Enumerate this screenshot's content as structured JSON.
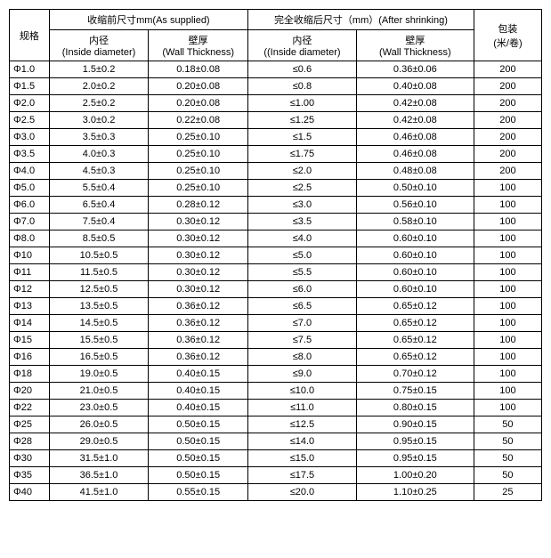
{
  "header": {
    "spec": "规格",
    "supplied_group": "收缩前尺寸mm(As supplied)",
    "shrunk_group": "完全收缩后尺寸（mm）(After shrinking)",
    "id_line1": "内径",
    "id_line2": "(Inside diameter)",
    "wt_line1": "壁厚",
    "wt_line2": "(Wall Thickness)",
    "id2_line1": "内径",
    "id2_line2": "((Inside diameter)",
    "wt2_line1": "壁厚",
    "wt2_line2": "(Wall Thickness)",
    "pack_line1": "包装",
    "pack_line2": "(米/卷)"
  },
  "rows": [
    {
      "spec": "Φ1.0",
      "id": "1.5±0.2",
      "wt": "0.18±0.08",
      "id2": "≤0.6",
      "wt2": "0.36±0.06",
      "pack": "200"
    },
    {
      "spec": "Φ1.5",
      "id": "2.0±0.2",
      "wt": "0.20±0.08",
      "id2": "≤0.8",
      "wt2": "0.40±0.08",
      "pack": "200"
    },
    {
      "spec": "Φ2.0",
      "id": "2.5±0.2",
      "wt": "0.20±0.08",
      "id2": "≤1.00",
      "wt2": "0.42±0.08",
      "pack": "200"
    },
    {
      "spec": "Φ2.5",
      "id": "3.0±0.2",
      "wt": "0.22±0.08",
      "id2": "≤1.25",
      "wt2": "0.42±0.08",
      "pack": "200"
    },
    {
      "spec": "Φ3.0",
      "id": "3.5±0.3",
      "wt": "0.25±0.10",
      "id2": "≤1.5",
      "wt2": "0.46±0.08",
      "pack": "200"
    },
    {
      "spec": "Φ3.5",
      "id": "4.0±0.3",
      "wt": "0.25±0.10",
      "id2": "≤1.75",
      "wt2": "0.46±0.08",
      "pack": "200"
    },
    {
      "spec": "Φ4.0",
      "id": "4.5±0.3",
      "wt": "0.25±0.10",
      "id2": "≤2.0",
      "wt2": "0.48±0.08",
      "pack": "200"
    },
    {
      "spec": "Φ5.0",
      "id": "5.5±0.4",
      "wt": "0.25±0.10",
      "id2": "≤2.5",
      "wt2": "0.50±0.10",
      "pack": "100"
    },
    {
      "spec": "Φ6.0",
      "id": "6.5±0.4",
      "wt": "0.28±0.12",
      "id2": "≤3.0",
      "wt2": "0.56±0.10",
      "pack": "100"
    },
    {
      "spec": "Φ7.0",
      "id": "7.5±0.4",
      "wt": "0.30±0.12",
      "id2": "≤3.5",
      "wt2": "0.58±0.10",
      "pack": "100"
    },
    {
      "spec": "Φ8.0",
      "id": "8.5±0.5",
      "wt": "0.30±0.12",
      "id2": "≤4.0",
      "wt2": "0.60±0.10",
      "pack": "100"
    },
    {
      "spec": "Φ10",
      "id": "10.5±0.5",
      "wt": "0.30±0.12",
      "id2": "≤5.0",
      "wt2": "0.60±0.10",
      "pack": "100"
    },
    {
      "spec": "Φ11",
      "id": "11.5±0.5",
      "wt": "0.30±0.12",
      "id2": "≤5.5",
      "wt2": "0.60±0.10",
      "pack": "100"
    },
    {
      "spec": "Φ12",
      "id": "12.5±0.5",
      "wt": "0.30±0.12",
      "id2": "≤6.0",
      "wt2": "0.60±0.10",
      "pack": "100"
    },
    {
      "spec": "Φ13",
      "id": "13.5±0.5",
      "wt": "0.36±0.12",
      "id2": "≤6.5",
      "wt2": "0.65±0.12",
      "pack": "100"
    },
    {
      "spec": "Φ14",
      "id": "14.5±0.5",
      "wt": "0.36±0.12",
      "id2": "≤7.0",
      "wt2": "0.65±0.12",
      "pack": "100"
    },
    {
      "spec": "Φ15",
      "id": "15.5±0.5",
      "wt": "0.36±0.12",
      "id2": "≤7.5",
      "wt2": "0.65±0.12",
      "pack": "100"
    },
    {
      "spec": "Φ16",
      "id": "16.5±0.5",
      "wt": "0.36±0.12",
      "id2": "≤8.0",
      "wt2": "0.65±0.12",
      "pack": "100"
    },
    {
      "spec": "Φ18",
      "id": "19.0±0.5",
      "wt": "0.40±0.15",
      "id2": "≤9.0",
      "wt2": "0.70±0.12",
      "pack": "100"
    },
    {
      "spec": "Φ20",
      "id": "21.0±0.5",
      "wt": "0.40±0.15",
      "id2": "≤10.0",
      "wt2": "0.75±0.15",
      "pack": "100"
    },
    {
      "spec": "Φ22",
      "id": "23.0±0.5",
      "wt": "0.40±0.15",
      "id2": "≤11.0",
      "wt2": "0.80±0.15",
      "pack": "100"
    },
    {
      "spec": "Φ25",
      "id": "26.0±0.5",
      "wt": "0.50±0.15",
      "id2": "≤12.5",
      "wt2": "0.90±0.15",
      "pack": "50"
    },
    {
      "spec": "Φ28",
      "id": "29.0±0.5",
      "wt": "0.50±0.15",
      "id2": "≤14.0",
      "wt2": "0.95±0.15",
      "pack": "50"
    },
    {
      "spec": "Φ30",
      "id": "31.5±1.0",
      "wt": "0.50±0.15",
      "id2": "≤15.0",
      "wt2": "0.95±0.15",
      "pack": "50"
    },
    {
      "spec": "Φ35",
      "id": "36.5±1.0",
      "wt": "0.50±0.15",
      "id2": "≤17.5",
      "wt2": "1.00±0.20",
      "pack": "50"
    },
    {
      "spec": "Φ40",
      "id": "41.5±1.0",
      "wt": "0.55±0.15",
      "id2": "≤20.0",
      "wt2": "1.10±0.25",
      "pack": "25"
    }
  ]
}
